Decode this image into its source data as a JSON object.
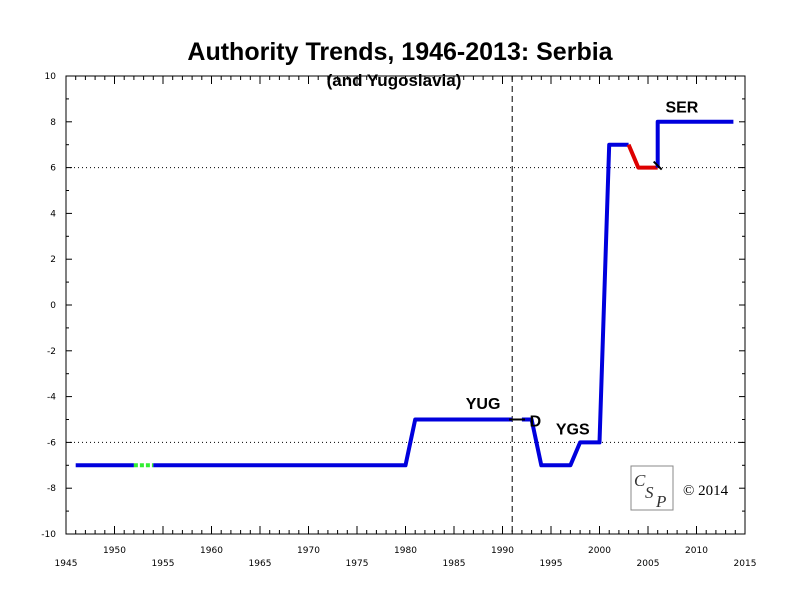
{
  "chart_data": {
    "type": "line",
    "title": "Authority Trends, 1946-2013: Serbia",
    "subtitle": "(and Yugoslavia)",
    "xlabel": "",
    "ylabel": "",
    "xlim": [
      1945,
      2015
    ],
    "ylim": [
      -10,
      10
    ],
    "x_ticks": [
      1945,
      1950,
      1955,
      1960,
      1965,
      1970,
      1975,
      1980,
      1985,
      1990,
      1995,
      2000,
      2005,
      2010,
      2015
    ],
    "y_ticks": [
      -10,
      -8,
      -6,
      -4,
      -2,
      0,
      2,
      4,
      6,
      8,
      10
    ],
    "reference_lines": [
      6,
      -6
    ],
    "vertical_markers": [
      1991
    ],
    "series": [
      {
        "color": "#0000dd",
        "points": [
          [
            1946,
            -7
          ],
          [
            1952,
            -7
          ]
        ]
      },
      {
        "color": "#33ee33",
        "style": "dashed",
        "points": [
          [
            1952,
            -7
          ],
          [
            1954,
            -7
          ]
        ]
      },
      {
        "color": "#0000dd",
        "points": [
          [
            1954,
            -7
          ],
          [
            1980,
            -7
          ],
          [
            1981,
            -5
          ],
          [
            1991,
            -5
          ]
        ]
      },
      {
        "color": "#0000dd",
        "points": [
          [
            1992,
            -5
          ],
          [
            1993,
            -5
          ],
          [
            1994,
            -7
          ],
          [
            1997,
            -7
          ],
          [
            1998,
            -6
          ],
          [
            2000,
            -6
          ],
          [
            2001,
            7
          ],
          [
            2003,
            7
          ]
        ]
      },
      {
        "color": "#dd0000",
        "points": [
          [
            2003,
            7
          ],
          [
            2004,
            6
          ],
          [
            2006,
            6
          ]
        ]
      },
      {
        "color": "#0000dd",
        "points": [
          [
            2006,
            6
          ],
          [
            2006,
            8
          ],
          [
            2013.8,
            8
          ]
        ]
      }
    ],
    "annotations": [
      {
        "text": "YUG",
        "x": 1988,
        "y": -4.55
      },
      {
        "text": "D",
        "x": 1992.8,
        "y": -5.3
      },
      {
        "text": "YGS",
        "x": 1995.5,
        "y": -5.65
      },
      {
        "text": "SER",
        "x": 2006.8,
        "y": 8.4
      }
    ]
  },
  "copyright": "© 2014",
  "logo": {
    "text": "CSP"
  }
}
